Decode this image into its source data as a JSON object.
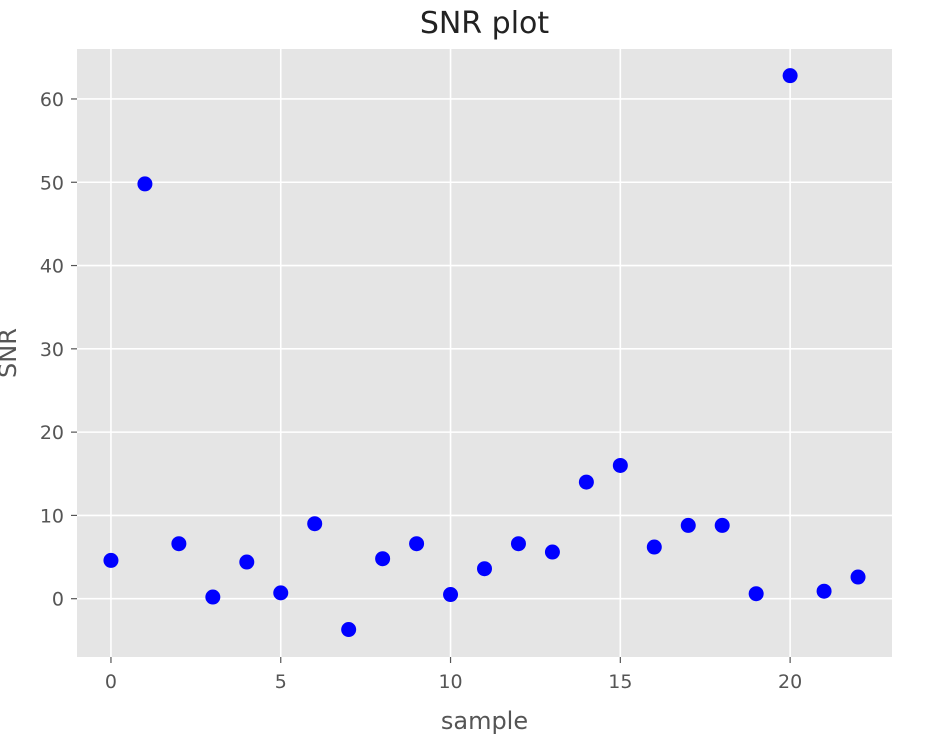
{
  "chart_data": {
    "type": "scatter",
    "title": "SNR plot",
    "xlabel": "sample",
    "ylabel": "SNR",
    "xlim": [
      -1,
      23
    ],
    "ylim": [
      -7,
      66
    ],
    "xticks": [
      0,
      5,
      10,
      15,
      20
    ],
    "yticks": [
      0,
      10,
      20,
      30,
      40,
      50,
      60
    ],
    "grid": true,
    "background_color": "#e5e5e5",
    "grid_color": "#ffffff",
    "marker_color": "#0000ff",
    "series": [
      {
        "x": [
          0,
          1,
          2,
          3,
          4,
          5,
          6,
          7,
          8,
          9,
          10,
          11,
          12,
          13,
          14,
          15,
          16,
          17,
          18,
          19,
          20,
          21,
          22
        ],
        "y": [
          4.6,
          49.8,
          6.6,
          0.2,
          4.4,
          0.7,
          9.0,
          -3.7,
          4.8,
          6.6,
          0.5,
          3.6,
          6.6,
          5.6,
          14.0,
          16.0,
          6.2,
          8.8,
          8.8,
          0.6,
          62.8,
          0.9,
          2.6
        ]
      }
    ]
  }
}
